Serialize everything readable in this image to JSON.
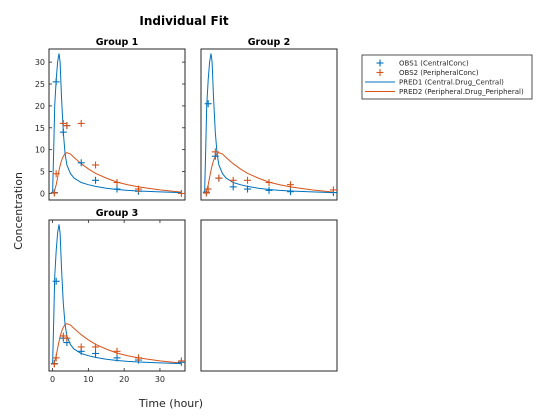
{
  "figure": {
    "title": "Individual Fit",
    "xlabel": "Time (hour)",
    "ylabel": "Concentration"
  },
  "colors": {
    "central": "#0072BD",
    "peripheral": "#D95319"
  },
  "legend": {
    "placement": "top-right-outside",
    "entries": [
      {
        "label": "OBS1 (CentralConc)",
        "kind": "marker",
        "series": "central"
      },
      {
        "label": "OBS2 (PeripheralConc)",
        "kind": "marker",
        "series": "peripheral"
      },
      {
        "label": "PRED1 (Central.Drug_Central)",
        "kind": "line",
        "series": "central"
      },
      {
        "label": "PRED2 (Peripheral.Drug_Peripheral)",
        "kind": "line",
        "series": "peripheral"
      }
    ]
  },
  "chart_data": [
    {
      "type": "scatter",
      "title": "Group 1",
      "xlim": [
        -1,
        37
      ],
      "ylim": [
        -1.5,
        33
      ],
      "yticks": [
        0,
        5,
        10,
        15,
        20,
        25,
        30
      ],
      "show_yticks": true,
      "show_xticks": false,
      "obs_central": {
        "x": [
          0.5,
          1,
          3,
          4,
          8,
          12,
          18,
          24
        ],
        "y": [
          0.2,
          25.5,
          14,
          15.5,
          7,
          3,
          1,
          0.5
        ]
      },
      "obs_peripheral": {
        "x": [
          0.5,
          1,
          3,
          4,
          8,
          12,
          18,
          24,
          36
        ],
        "y": [
          0.1,
          4.5,
          16,
          15.5,
          16,
          6.5,
          2.5,
          1,
          0
        ]
      },
      "pred_central": {
        "x": [
          0,
          0.3,
          0.6,
          1.0,
          1.4,
          1.8,
          2.1,
          2.5,
          3.0,
          3.5,
          4,
          5,
          6,
          8,
          10,
          12,
          15,
          18,
          21,
          24,
          30,
          36
        ],
        "y": [
          0,
          10,
          20,
          26,
          30,
          32,
          30,
          22,
          14,
          9,
          6.5,
          4.5,
          3.5,
          2.5,
          2,
          1.6,
          1.2,
          0.9,
          0.7,
          0.55,
          0.35,
          0.2
        ]
      },
      "pred_peripheral": {
        "x": [
          0,
          0.5,
          1,
          1.5,
          2,
          2.5,
          3,
          3.5,
          4,
          5,
          6,
          8,
          10,
          12,
          15,
          18,
          21,
          24,
          30,
          36
        ],
        "y": [
          0,
          0.5,
          2,
          4,
          6,
          7.5,
          8.5,
          9.1,
          9.3,
          9,
          8.2,
          6.8,
          5.6,
          4.6,
          3.5,
          2.6,
          2,
          1.5,
          0.8,
          0.3
        ]
      }
    },
    {
      "type": "scatter",
      "title": "Group 2",
      "xlim": [
        -1,
        37
      ],
      "ylim": [
        -1.5,
        33
      ],
      "show_yticks": false,
      "show_xticks": false,
      "obs_central": {
        "x": [
          0.5,
          1,
          3,
          4,
          8,
          12,
          18,
          24,
          36
        ],
        "y": [
          0.3,
          20.5,
          8.5,
          3.5,
          1.5,
          1,
          0.7,
          0.4,
          0.2
        ]
      },
      "obs_peripheral": {
        "x": [
          0.5,
          1,
          3,
          4,
          8,
          12,
          18,
          24,
          36
        ],
        "y": [
          0.1,
          1,
          9.5,
          3.5,
          3,
          3,
          2.5,
          2,
          0.8
        ]
      },
      "pred_central": {
        "x": [
          0,
          0.3,
          0.6,
          1.0,
          1.4,
          1.8,
          2.1,
          2.5,
          3.0,
          3.5,
          4,
          5,
          6,
          8,
          10,
          12,
          15,
          18,
          21,
          24,
          30,
          36
        ],
        "y": [
          0,
          10,
          20,
          26,
          30,
          32,
          30,
          22,
          14,
          9,
          6.5,
          4.5,
          3.5,
          2.5,
          2,
          1.6,
          1.2,
          0.9,
          0.7,
          0.55,
          0.35,
          0.2
        ]
      },
      "pred_peripheral": {
        "x": [
          0,
          0.5,
          1,
          1.5,
          2,
          2.5,
          3,
          3.5,
          4,
          5,
          6,
          8,
          10,
          12,
          15,
          18,
          21,
          24,
          30,
          36
        ],
        "y": [
          0,
          0.5,
          2,
          4,
          6,
          7.5,
          8.5,
          9.1,
          9.3,
          9,
          8.2,
          6.8,
          5.6,
          4.6,
          3.5,
          2.6,
          2,
          1.5,
          0.8,
          0.3
        ]
      }
    },
    {
      "type": "scatter",
      "title": "Group 3",
      "xlim": [
        -1,
        37
      ],
      "ylim": [
        -1.5,
        33
      ],
      "xticks": [
        0,
        10,
        20,
        30
      ],
      "show_yticks": false,
      "show_xticks": true,
      "obs_central": {
        "x": [
          0.5,
          1,
          3,
          4,
          8,
          12,
          18,
          24,
          36
        ],
        "y": [
          0.2,
          19,
          6,
          5,
          3,
          2.5,
          1.5,
          1,
          0.5
        ]
      },
      "obs_peripheral": {
        "x": [
          0.5,
          1,
          3,
          4,
          8,
          12,
          18,
          24,
          36
        ],
        "y": [
          0.1,
          1.5,
          6.5,
          6,
          4,
          4,
          3,
          1.5,
          0.8
        ]
      },
      "pred_central": {
        "x": [
          0,
          0.3,
          0.6,
          1.0,
          1.4,
          1.8,
          2.1,
          2.5,
          3.0,
          3.5,
          4,
          5,
          6,
          8,
          10,
          12,
          15,
          18,
          21,
          24,
          30,
          36
        ],
        "y": [
          0,
          10,
          20,
          26,
          30,
          32,
          30,
          22,
          14,
          9,
          6.5,
          4.5,
          3.5,
          2.5,
          2,
          1.6,
          1.2,
          0.9,
          0.7,
          0.55,
          0.35,
          0.2
        ]
      },
      "pred_peripheral": {
        "x": [
          0,
          0.5,
          1,
          1.5,
          2,
          2.5,
          3,
          3.5,
          4,
          5,
          6,
          8,
          10,
          12,
          15,
          18,
          21,
          24,
          30,
          36
        ],
        "y": [
          0,
          0.5,
          2,
          4,
          6,
          7.5,
          8.5,
          9.1,
          9.3,
          9,
          8.2,
          6.8,
          5.6,
          4.6,
          3.5,
          2.6,
          2,
          1.5,
          0.8,
          0.3
        ]
      }
    },
    {
      "type": "scatter",
      "title": "",
      "empty": true,
      "xlim": [
        -1,
        37
      ],
      "ylim": [
        -1.5,
        33
      ],
      "show_yticks": false,
      "show_xticks": false
    }
  ]
}
